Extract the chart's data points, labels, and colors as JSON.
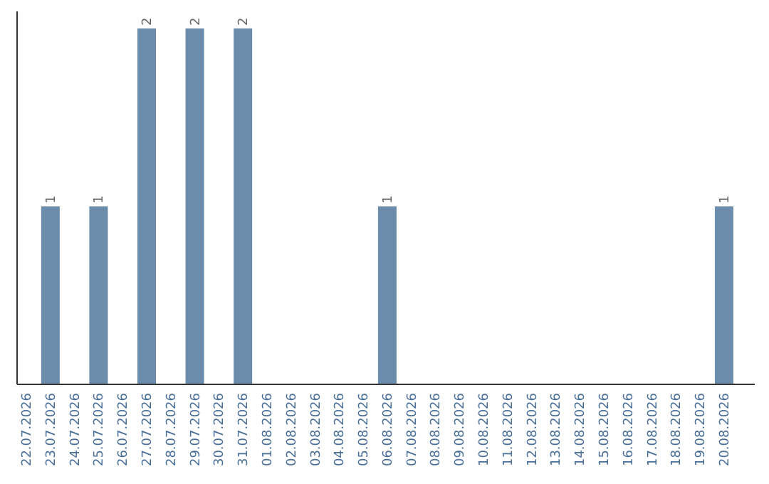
{
  "chart_data": {
    "type": "bar",
    "categories": [
      "22.07.2026",
      "23.07.2026",
      "24.07.2026",
      "25.07.2026",
      "26.07.2026",
      "27.07.2026",
      "28.07.2026",
      "29.07.2026",
      "30.07.2026",
      "31.07.2026",
      "01.08.2026",
      "02.08.2026",
      "03.08.2026",
      "04.08.2026",
      "05.08.2026",
      "06.08.2026",
      "07.08.2026",
      "08.08.2026",
      "09.08.2026",
      "10.08.2026",
      "11.08.2026",
      "12.08.2026",
      "13.08.2026",
      "14.08.2026",
      "15.08.2026",
      "16.08.2026",
      "17.08.2026",
      "18.08.2026",
      "19.08.2026",
      "20.08.2026"
    ],
    "values": [
      0,
      1,
      0,
      1,
      0,
      2,
      0,
      2,
      0,
      2,
      0,
      0,
      0,
      0,
      0,
      1,
      0,
      0,
      0,
      0,
      0,
      0,
      0,
      0,
      0,
      0,
      0,
      0,
      0,
      1
    ],
    "value_labels": [
      null,
      "1",
      null,
      "1",
      null,
      "2",
      null,
      "2",
      null,
      "2",
      null,
      null,
      null,
      null,
      null,
      "1",
      null,
      null,
      null,
      null,
      null,
      null,
      null,
      null,
      null,
      null,
      null,
      null,
      null,
      "1"
    ],
    "color": "#6b8cab"
  }
}
